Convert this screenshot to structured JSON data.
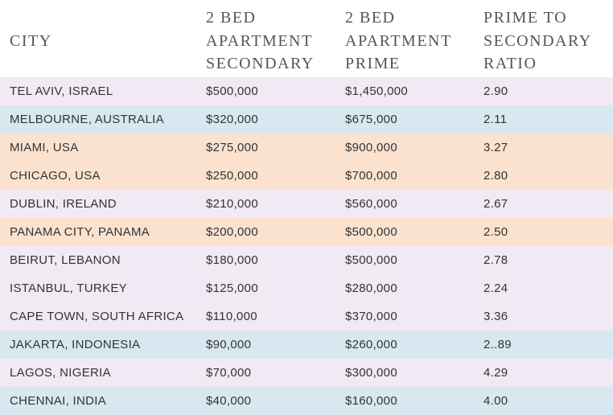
{
  "header": {
    "city": [
      "CITY"
    ],
    "secondary": [
      "2 BED",
      "APARTMENT",
      "SECONDARY"
    ],
    "prime": [
      "2 BED",
      "APARTMENT",
      "PRIME"
    ],
    "ratio": [
      "PRIME TO",
      "SECONDARY",
      "RATIO"
    ]
  },
  "rows": [
    {
      "city": "TEL AVIV, ISRAEL",
      "secondary": "$500,000",
      "prime": "$1,450,000",
      "ratio": "2.90",
      "band": "lavender",
      "color": "#f1e9f3"
    },
    {
      "city": "MELBOURNE, AUSTRALIA",
      "secondary": "$320,000",
      "prime": "$675,000",
      "ratio": "2.11",
      "band": "blue",
      "color": "#d9e8f0"
    },
    {
      "city": "MIAMI, USA",
      "secondary": "$275,000",
      "prime": "$900,000",
      "ratio": "3.27",
      "band": "peach",
      "color": "#fbe2cf"
    },
    {
      "city": "CHICAGO, USA",
      "secondary": "$250,000",
      "prime": "$700,000",
      "ratio": "2.80",
      "band": "peach",
      "color": "#fbe2cf"
    },
    {
      "city": "DUBLIN, IRELAND",
      "secondary": "$210,000",
      "prime": "$560,000",
      "ratio": "2.67",
      "band": "lavender",
      "color": "#f1e9f3"
    },
    {
      "city": "PANAMA CITY, PANAMA",
      "secondary": "$200,000",
      "prime": "$500,000",
      "ratio": "2.50",
      "band": "peach",
      "color": "#fbe2cf"
    },
    {
      "city": "BEIRUT, LEBANON",
      "secondary": "$180,000",
      "prime": "$500,000",
      "ratio": "2.78",
      "band": "lavender",
      "color": "#f1e9f3"
    },
    {
      "city": "ISTANBUL, TURKEY",
      "secondary": "$125,000",
      "prime": "$280,000",
      "ratio": "2.24",
      "band": "lavender",
      "color": "#f1e9f3"
    },
    {
      "city": "CAPE TOWN, SOUTH AFRICA",
      "secondary": "$110,000",
      "prime": "$370,000",
      "ratio": "3.36",
      "band": "lavender",
      "color": "#f1e9f3"
    },
    {
      "city": "JAKARTA, INDONESIA",
      "secondary": "$90,000",
      "prime": "$260,000",
      "ratio": "2..89",
      "band": "blue",
      "color": "#d9e8f0"
    },
    {
      "city": "LAGOS, NIGERIA",
      "secondary": "$70,000",
      "prime": "$300,000",
      "ratio": "4.29",
      "band": "lavender",
      "color": "#f1e9f3"
    },
    {
      "city": "CHENNAI, INDIA",
      "secondary": "$40,000",
      "prime": "$160,000",
      "ratio": "4.00",
      "band": "blue",
      "color": "#d9e8f0"
    }
  ]
}
